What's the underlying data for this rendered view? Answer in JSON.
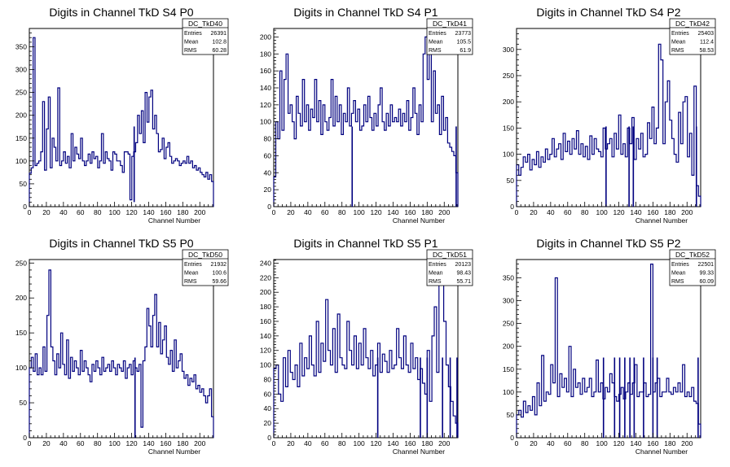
{
  "chart_data": [
    {
      "type": "histogram",
      "title": "Digits in Channel TkD S4 P0",
      "xlabel": "Channel Number",
      "xlim": [
        0,
        216
      ],
      "ylim": [
        0,
        390
      ],
      "xticks": [
        0,
        20,
        40,
        60,
        80,
        100,
        120,
        140,
        160,
        180,
        200
      ],
      "yticks": [
        0,
        50,
        100,
        150,
        200,
        250,
        300,
        350
      ],
      "color": "#00007f",
      "stats": {
        "name": "DC_TkD40",
        "entries": "26391",
        "mean": "102.8",
        "rms": "60.28"
      },
      "values": [
        73,
        85,
        370,
        90,
        95,
        100,
        120,
        230,
        80,
        170,
        240,
        85,
        150,
        130,
        100,
        260,
        90,
        100,
        120,
        95,
        110,
        85,
        160,
        100,
        130,
        115,
        105,
        150,
        100,
        90,
        100,
        115,
        95,
        120,
        105,
        110,
        85,
        100,
        160,
        95,
        120,
        105,
        100,
        80,
        120,
        115,
        100,
        100,
        90,
        75,
        120,
        120,
        115,
        15,
        110,
        120,
        140,
        200,
        160,
        210,
        140,
        250,
        185,
        240,
        255,
        170,
        200,
        160,
        120,
        125,
        150,
        105,
        130,
        140,
        110,
        95,
        100,
        105,
        100,
        90,
        95,
        100,
        95,
        110,
        95,
        100,
        85,
        90,
        80,
        85,
        75,
        70,
        65,
        75,
        60,
        70,
        55
      ],
      "dips": [
        [
          123,
          10
        ]
      ]
    },
    {
      "type": "histogram",
      "title": "Digits in Channel TkD S4 P1",
      "xlabel": "Channel Number",
      "xlim": [
        0,
        216
      ],
      "ylim": [
        0,
        210
      ],
      "xticks": [
        0,
        20,
        40,
        60,
        80,
        100,
        120,
        140,
        160,
        180,
        200
      ],
      "yticks": [
        0,
        20,
        40,
        60,
        80,
        100,
        120,
        140,
        160,
        180,
        200
      ],
      "color": "#00007f",
      "stats": {
        "name": "DC_TkD41",
        "entries": "23773",
        "mean": "105.5",
        "rms": "61.9"
      },
      "values": [
        35,
        100,
        80,
        160,
        90,
        150,
        180,
        110,
        120,
        100,
        80,
        130,
        110,
        95,
        150,
        100,
        120,
        90,
        115,
        105,
        150,
        100,
        125,
        85,
        120,
        100,
        90,
        105,
        150,
        95,
        130,
        100,
        120,
        85,
        110,
        100,
        140,
        95,
        110,
        125,
        100,
        115,
        90,
        95,
        120,
        100,
        130,
        105,
        90,
        110,
        95,
        120,
        140,
        100,
        90,
        110,
        95,
        120,
        100,
        105,
        100,
        115,
        95,
        110,
        100,
        125,
        90,
        105,
        140,
        110,
        85,
        120,
        100,
        180,
        200,
        150,
        190,
        100,
        160,
        110,
        120,
        85,
        130,
        90,
        105,
        75,
        70,
        65,
        60,
        40
      ],
      "dips": [
        [
          92,
          0
        ],
        [
          214,
          0
        ]
      ]
    },
    {
      "type": "histogram",
      "title": "Digits in Channel TkD S4 P2",
      "xlabel": "Channel Number",
      "xlim": [
        0,
        216
      ],
      "ylim": [
        0,
        340
      ],
      "xticks": [
        0,
        20,
        40,
        60,
        80,
        100,
        120,
        140,
        160,
        180,
        200
      ],
      "yticks": [
        0,
        50,
        100,
        150,
        200,
        250,
        300
      ],
      "color": "#00007f",
      "stats": {
        "name": "DC_TkD42",
        "entries": "25403",
        "mean": "112.4",
        "rms": "58.53"
      },
      "values": [
        80,
        60,
        75,
        95,
        85,
        100,
        70,
        90,
        80,
        105,
        75,
        95,
        85,
        110,
        90,
        100,
        130,
        95,
        110,
        120,
        90,
        140,
        105,
        125,
        100,
        130,
        110,
        145,
        100,
        120,
        95,
        115,
        90,
        135,
        100,
        130,
        110,
        105,
        95,
        150,
        110,
        120,
        130,
        95,
        140,
        110,
        175,
        100,
        120,
        95,
        150,
        120,
        170,
        90,
        130,
        110,
        140,
        95,
        100,
        160,
        130,
        190,
        120,
        150,
        310,
        280,
        120,
        200,
        240,
        165,
        130,
        100,
        85,
        180,
        120,
        200,
        210,
        95,
        140,
        60,
        230,
        40,
        20
      ],
      "dips": [
        [
          105,
          0
        ],
        [
          132,
          0
        ],
        [
          137,
          0
        ],
        [
          211,
          0
        ]
      ]
    },
    {
      "type": "histogram",
      "title": "Digits in Channel TkD S5 P0",
      "xlabel": "Channel Number",
      "xlim": [
        0,
        216
      ],
      "ylim": [
        0,
        255
      ],
      "xticks": [
        0,
        20,
        40,
        60,
        80,
        100,
        120,
        140,
        160,
        180,
        200
      ],
      "yticks": [
        0,
        50,
        100,
        150,
        200,
        250
      ],
      "color": "#00007f",
      "stats": {
        "name": "DC_TkD50",
        "entries": "21932",
        "mean": "100.6",
        "rms": "59.66"
      },
      "values": [
        100,
        115,
        95,
        120,
        90,
        100,
        90,
        130,
        95,
        175,
        240,
        130,
        110,
        90,
        120,
        100,
        150,
        105,
        90,
        140,
        85,
        115,
        95,
        110,
        100,
        90,
        125,
        95,
        110,
        100,
        90,
        80,
        105,
        95,
        110,
        100,
        90,
        115,
        95,
        100,
        105,
        95,
        110,
        100,
        90,
        105,
        100,
        95,
        110,
        85,
        100,
        105,
        90,
        110,
        100,
        95,
        105,
        15,
        110,
        130,
        185,
        160,
        130,
        175,
        205,
        130,
        165,
        120,
        140,
        160,
        115,
        105,
        125,
        95,
        140,
        100,
        110,
        120,
        95,
        85,
        90,
        75,
        85,
        80,
        90,
        70,
        75,
        65,
        70,
        60,
        50,
        60,
        70,
        30
      ],
      "dips": [
        [
          124,
          0
        ]
      ]
    },
    {
      "type": "histogram",
      "title": "Digits in Channel TkD S5 P1",
      "xlabel": "Channel Number",
      "xlim": [
        0,
        216
      ],
      "ylim": [
        0,
        245
      ],
      "xticks": [
        0,
        20,
        40,
        60,
        80,
        100,
        120,
        140,
        160,
        180,
        200
      ],
      "yticks": [
        0,
        20,
        40,
        60,
        80,
        100,
        120,
        140,
        160,
        180,
        200,
        220,
        240
      ],
      "color": "#00007f",
      "stats": {
        "name": "DC_TkD51",
        "entries": "20123",
        "mean": "98.43",
        "rms": "55.71"
      },
      "values": [
        95,
        100,
        60,
        50,
        110,
        70,
        120,
        90,
        80,
        100,
        70,
        130,
        85,
        110,
        95,
        140,
        100,
        85,
        160,
        90,
        130,
        105,
        190,
        120,
        100,
        150,
        90,
        170,
        110,
        100,
        95,
        160,
        120,
        100,
        140,
        95,
        130,
        100,
        150,
        110,
        95,
        120,
        85,
        100,
        130,
        90,
        115,
        105,
        90,
        120,
        95,
        100,
        150,
        110,
        95,
        140,
        100,
        90,
        130,
        95,
        110,
        80,
        95,
        75,
        60,
        120,
        50,
        140,
        180,
        90,
        210,
        220,
        160,
        100,
        70,
        50,
        30,
        20
      ],
      "dips": [
        [
          122,
          0
        ],
        [
          172,
          0
        ],
        [
          180,
          0
        ],
        [
          198,
          0
        ],
        [
          207,
          0
        ],
        [
          215,
          0
        ]
      ]
    },
    {
      "type": "histogram",
      "title": "Digits in Channel TkD S5 P2",
      "xlabel": "Channel Number",
      "xlim": [
        0,
        216
      ],
      "ylim": [
        0,
        390
      ],
      "xticks": [
        0,
        20,
        40,
        60,
        80,
        100,
        120,
        140,
        160,
        180,
        200
      ],
      "yticks": [
        0,
        50,
        100,
        150,
        200,
        250,
        300,
        350
      ],
      "color": "#00007f",
      "stats": {
        "name": "DC_TkD52",
        "entries": "22501",
        "mean": "99.33",
        "rms": "60.09"
      },
      "values": [
        50,
        60,
        45,
        80,
        55,
        70,
        60,
        90,
        50,
        120,
        70,
        180,
        80,
        100,
        95,
        160,
        120,
        350,
        90,
        140,
        110,
        130,
        100,
        200,
        90,
        150,
        110,
        120,
        95,
        130,
        100,
        110,
        130,
        90,
        100,
        170,
        100,
        120,
        85,
        110,
        100,
        140,
        120,
        90,
        80,
        95,
        110,
        85,
        100,
        120,
        95,
        120,
        160,
        90,
        100,
        100,
        120,
        90,
        95,
        380,
        100,
        120,
        130,
        90,
        100,
        100,
        130,
        100,
        95,
        110,
        100,
        120,
        100,
        160,
        90,
        100,
        90,
        110,
        80,
        75,
        30
      ],
      "dips": [
        [
          102,
          0
        ],
        [
          115,
          0
        ],
        [
          121,
          0
        ],
        [
          127,
          0
        ],
        [
          133,
          0
        ],
        [
          138,
          0
        ],
        [
          149,
          0
        ],
        [
          160,
          0
        ],
        [
          165,
          0
        ],
        [
          213,
          0
        ]
      ]
    }
  ]
}
